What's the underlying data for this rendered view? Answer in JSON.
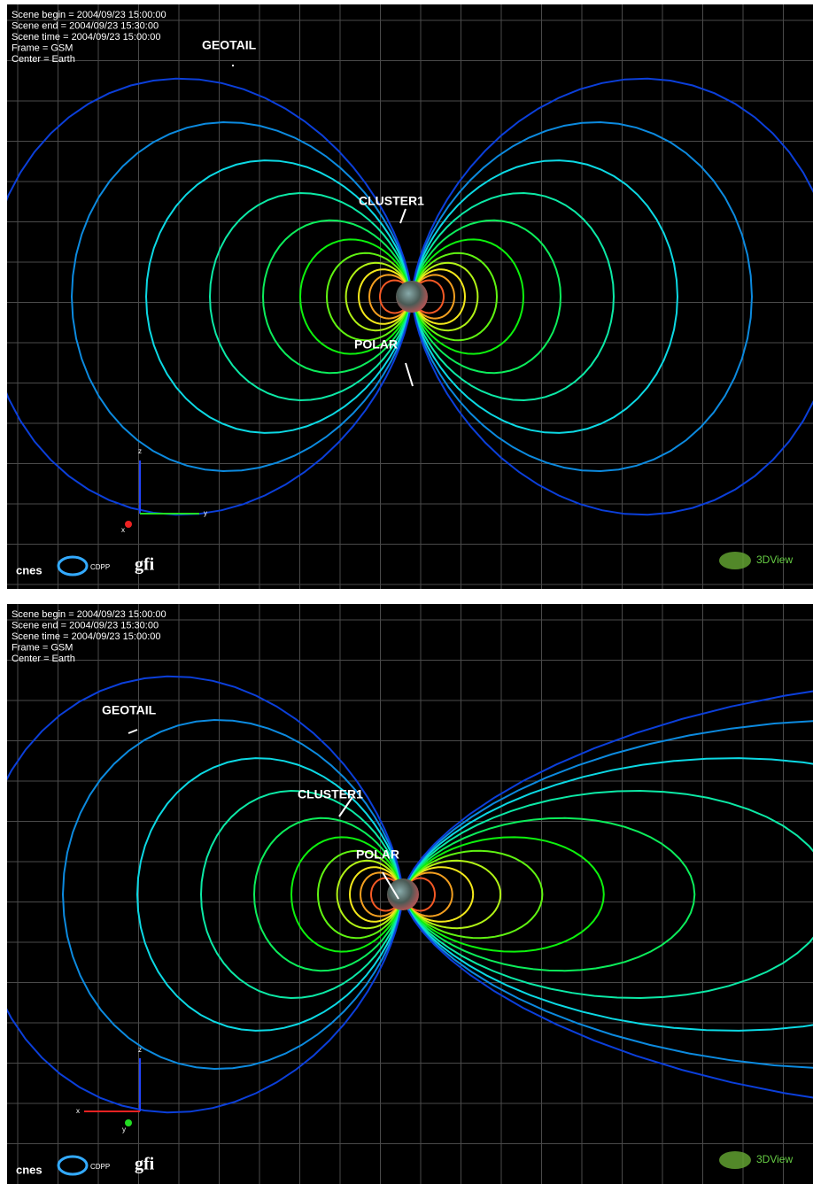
{
  "panels": [
    {
      "info": [
        "Scene begin = 2004/09/23 15:00:00",
        "Scene end = 2004/09/23 15:30:00",
        "Scene time = 2004/09/23 15:00:00",
        "Frame = GSM",
        "Center = Earth"
      ],
      "labels": [
        "GEOTAIL",
        "CLUSTER1",
        "POLAR"
      ],
      "axes": [
        "z",
        "y",
        "x"
      ],
      "logos": [
        "cnes",
        "CDPP",
        "gfi",
        "3DView"
      ]
    },
    {
      "info": [
        "Scene begin = 2004/09/23 15:00:00",
        "Scene end = 2004/09/23 15:30:00",
        "Scene time = 2004/09/23 15:00:00",
        "Frame = GSM",
        "Center = Earth"
      ],
      "labels": [
        "GEOTAIL",
        "CLUSTER1",
        "POLAR"
      ],
      "axes": [
        "z",
        "x",
        "y"
      ],
      "logos": [
        "cnes",
        "CDPP",
        "gfi",
        "3DView"
      ]
    }
  ]
}
